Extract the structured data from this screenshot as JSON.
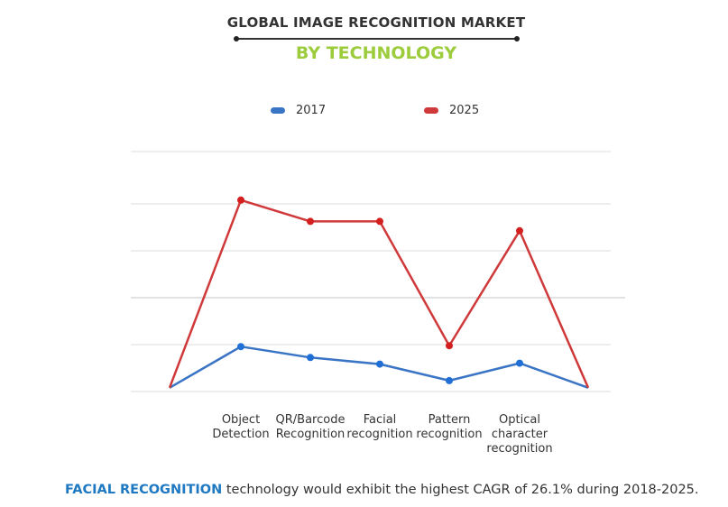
{
  "header": {
    "title": "GLOBAL IMAGE RECOGNITION  MARKET",
    "subtitle": "BY TECHNOLOGY"
  },
  "legend": [
    {
      "label": "2017",
      "color": "#3a74c4"
    },
    {
      "label": "2025",
      "color": "#d0393a"
    }
  ],
  "footer": {
    "highlight": "FACIAL RECOGNITION",
    "text": " technology would exhibit the highest CAGR of 26.1% during 2018-2025."
  },
  "chart_data": {
    "type": "line",
    "title": "GLOBAL IMAGE RECOGNITION MARKET BY TECHNOLOGY",
    "xlabel": "",
    "ylabel": "",
    "categories": [
      "",
      "Object Detection",
      "QR/Barcode Recognition",
      "Facial recognition",
      "Pattern recognition",
      "Optical character recognition",
      ""
    ],
    "tick_labels": [
      [
        "Object",
        "Detection"
      ],
      [
        "QR/Barcode",
        "Recognition"
      ],
      [
        "Facial",
        "recognition"
      ],
      [
        "Pattern",
        "recognition"
      ],
      [
        "Optical",
        "character",
        "recognition"
      ]
    ],
    "series": [
      {
        "name": "2017",
        "color": "#3a74c4",
        "values": [
          0.08,
          0.95,
          0.72,
          0.58,
          0.23,
          0.6,
          0.08
        ]
      },
      {
        "name": "2025",
        "color": "#d0393a",
        "values": [
          0.08,
          4.05,
          3.6,
          3.6,
          0.97,
          3.4,
          0.08
        ]
      }
    ],
    "ylim": [
      0,
      5
    ],
    "grid": true,
    "y_axis_labels_shown": false,
    "legend_position": "top",
    "note": "Relative scale; no y-axis values shown in the figure"
  }
}
